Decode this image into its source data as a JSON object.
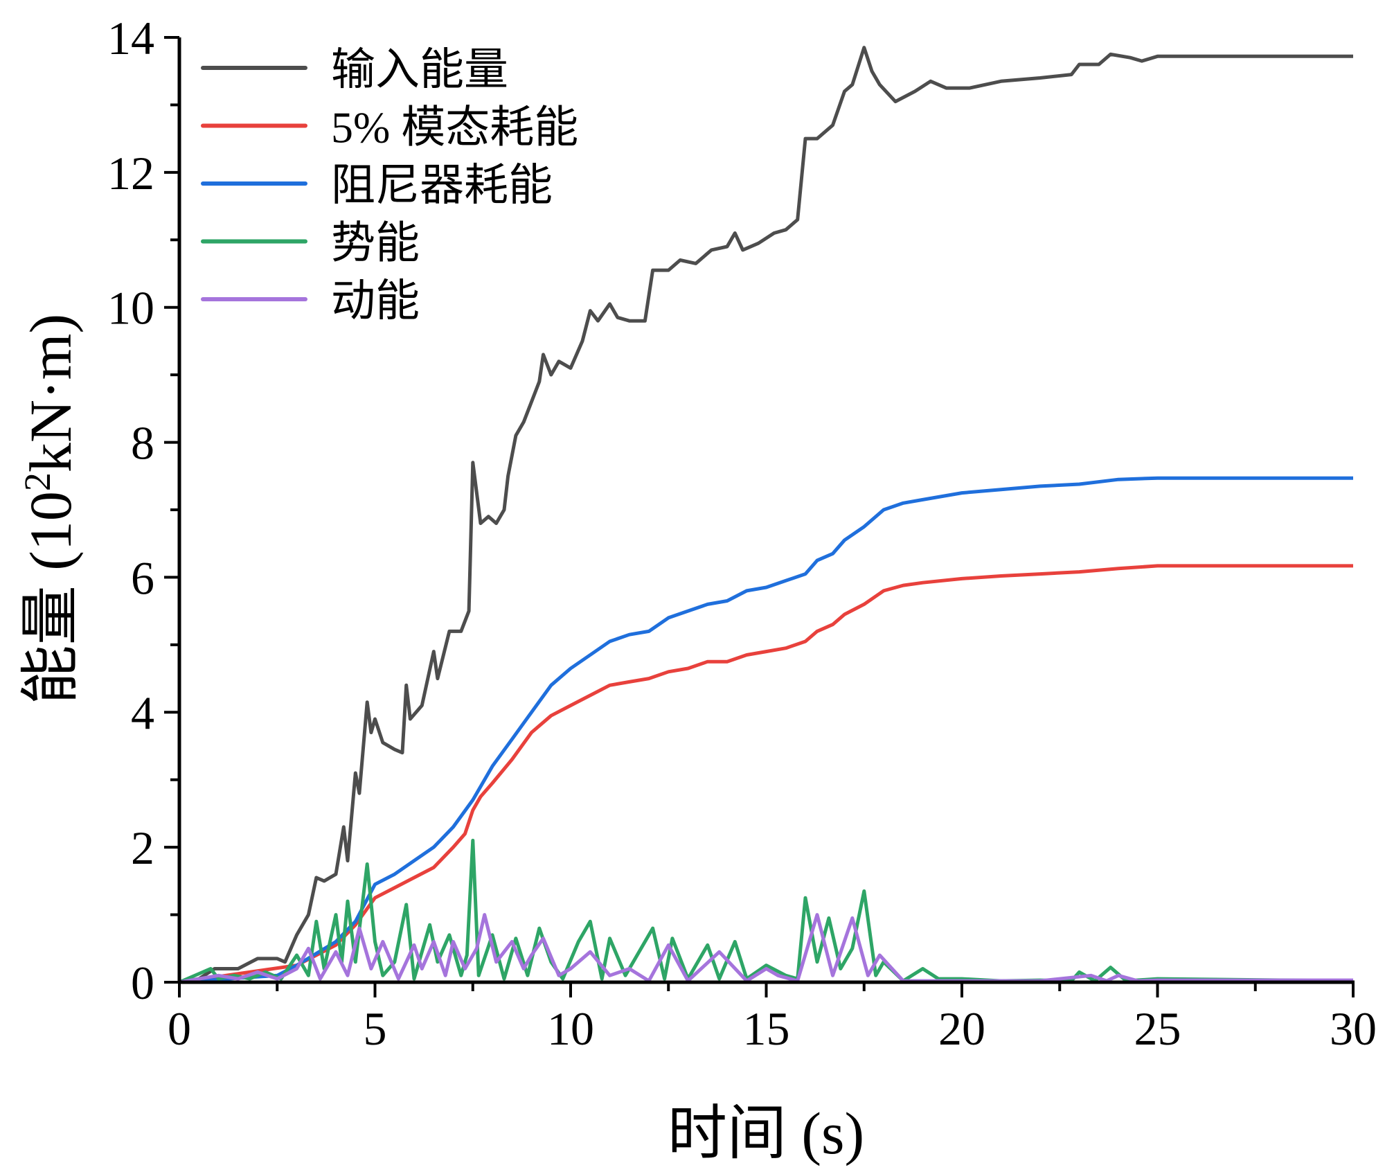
{
  "chart_data": {
    "type": "line",
    "title": "",
    "xlabel": "时间 (s)",
    "ylabel_main": "能量 (10",
    "ylabel_sup": "2",
    "ylabel_tail": "kN·m)",
    "xlim": [
      0,
      30
    ],
    "ylim": [
      0,
      14
    ],
    "x_ticks": [
      "0",
      "5",
      "10",
      "15",
      "20",
      "25",
      "30"
    ],
    "y_ticks": [
      "0",
      "2",
      "4",
      "6",
      "8",
      "10",
      "12",
      "14"
    ],
    "grid": false,
    "legend_position": "top-left",
    "series": [
      {
        "name": "输入能量",
        "color": "#4d4d4d",
        "x": [
          0,
          0.5,
          0.9,
          1.5,
          2,
          2.5,
          2.7,
          3,
          3.3,
          3.5,
          3.7,
          4,
          4.2,
          4.3,
          4.5,
          4.6,
          4.8,
          4.9,
          5.0,
          5.2,
          5.5,
          5.7,
          5.8,
          5.9,
          6.2,
          6.5,
          6.6,
          6.9,
          7.2,
          7.4,
          7.5,
          7.7,
          7.9,
          8.1,
          8.3,
          8.4,
          8.6,
          8.8,
          9.0,
          9.2,
          9.3,
          9.5,
          9.7,
          10.0,
          10.3,
          10.5,
          10.7,
          11.0,
          11.2,
          11.5,
          11.9,
          12.1,
          12.5,
          12.8,
          13.2,
          13.6,
          14.0,
          14.2,
          14.4,
          14.8,
          15.2,
          15.5,
          15.8,
          16.0,
          16.3,
          16.7,
          17.0,
          17.2,
          17.5,
          17.7,
          17.9,
          18.3,
          18.8,
          19.2,
          19.6,
          20.2,
          21,
          22,
          22.8,
          23.0,
          23.5,
          23.8,
          24.3,
          24.6,
          25,
          30
        ],
        "y": [
          0,
          0.05,
          0.2,
          0.2,
          0.35,
          0.35,
          0.3,
          0.7,
          1.0,
          1.55,
          1.5,
          1.6,
          2.3,
          1.8,
          3.1,
          2.8,
          4.15,
          3.7,
          3.9,
          3.55,
          3.45,
          3.4,
          4.4,
          3.9,
          4.1,
          4.9,
          4.5,
          5.2,
          5.2,
          5.5,
          7.7,
          6.8,
          6.9,
          6.8,
          7.0,
          7.5,
          8.1,
          8.3,
          8.6,
          8.9,
          9.3,
          9.0,
          9.2,
          9.1,
          9.5,
          9.95,
          9.8,
          10.05,
          9.85,
          9.8,
          9.8,
          10.55,
          10.55,
          10.7,
          10.65,
          10.85,
          10.9,
          11.1,
          10.85,
          10.95,
          11.1,
          11.15,
          11.3,
          12.5,
          12.5,
          12.7,
          13.2,
          13.3,
          13.85,
          13.5,
          13.3,
          13.05,
          13.2,
          13.35,
          13.25,
          13.25,
          13.35,
          13.4,
          13.45,
          13.6,
          13.6,
          13.75,
          13.7,
          13.65,
          13.72,
          13.72
        ]
      },
      {
        "name": "5% 模态耗能",
        "color": "#e8413c",
        "x": [
          0,
          3,
          4,
          4.5,
          5,
          5.5,
          6,
          6.5,
          7,
          7.3,
          7.5,
          7.7,
          8,
          8.5,
          9,
          9.5,
          10,
          10.5,
          11,
          11.5,
          12,
          12.5,
          13,
          13.5,
          14,
          14.5,
          15,
          15.5,
          16,
          16.3,
          16.7,
          17,
          17.5,
          18,
          18.5,
          19,
          20,
          21,
          22,
          23,
          24,
          25,
          30
        ],
        "y": [
          0,
          0.25,
          0.55,
          0.85,
          1.25,
          1.4,
          1.55,
          1.7,
          2.0,
          2.2,
          2.55,
          2.75,
          2.95,
          3.3,
          3.7,
          3.95,
          4.1,
          4.25,
          4.4,
          4.45,
          4.5,
          4.6,
          4.65,
          4.75,
          4.75,
          4.85,
          4.9,
          4.95,
          5.05,
          5.2,
          5.3,
          5.45,
          5.6,
          5.8,
          5.88,
          5.92,
          5.98,
          6.02,
          6.05,
          6.08,
          6.13,
          6.17,
          6.17
        ]
      },
      {
        "name": "阻尼器耗能",
        "color": "#1f6fdc",
        "x": [
          0,
          2.5,
          3,
          4,
          4.5,
          5,
          5.5,
          6,
          6.5,
          7,
          7.5,
          8,
          8.5,
          9,
          9.5,
          10,
          10.5,
          11,
          11.5,
          12,
          12.5,
          13,
          13.5,
          14,
          14.5,
          15,
          15.5,
          16,
          16.3,
          16.7,
          17,
          17.5,
          18,
          18.5,
          19,
          20,
          21,
          22,
          23,
          24,
          25,
          30
        ],
        "y": [
          0,
          0.1,
          0.25,
          0.6,
          0.9,
          1.45,
          1.6,
          1.8,
          2.0,
          2.3,
          2.7,
          3.2,
          3.6,
          4.0,
          4.4,
          4.65,
          4.85,
          5.05,
          5.15,
          5.2,
          5.4,
          5.5,
          5.6,
          5.65,
          5.8,
          5.85,
          5.95,
          6.05,
          6.25,
          6.35,
          6.55,
          6.75,
          7.0,
          7.1,
          7.15,
          7.25,
          7.3,
          7.35,
          7.38,
          7.45,
          7.47,
          7.47
        ]
      },
      {
        "name": "势能",
        "color": "#2ea566",
        "x": [
          0,
          0.8,
          1.0,
          1.4,
          1.8,
          2.2,
          2.6,
          3.0,
          3.3,
          3.5,
          3.7,
          4.0,
          4.15,
          4.3,
          4.5,
          4.8,
          5.0,
          5.2,
          5.5,
          5.8,
          6.0,
          6.4,
          6.6,
          6.9,
          7.2,
          7.35,
          7.5,
          7.65,
          8.0,
          8.3,
          8.6,
          8.9,
          9.2,
          9.5,
          9.8,
          10.2,
          10.5,
          10.8,
          11.0,
          11.4,
          12.1,
          12.4,
          12.6,
          13.0,
          13.5,
          13.8,
          14.2,
          14.5,
          15.0,
          15.5,
          15.8,
          16.0,
          16.3,
          16.6,
          16.9,
          17.2,
          17.5,
          17.8,
          18.0,
          18.5,
          19.0,
          19.4,
          20,
          21,
          22,
          22.8,
          23,
          23.4,
          23.8,
          24.2,
          25,
          30
        ],
        "y": [
          0,
          0.2,
          0.05,
          0.1,
          0.05,
          0.15,
          0.05,
          0.4,
          0.1,
          0.9,
          0.2,
          1.0,
          0.3,
          1.2,
          0.3,
          1.75,
          0.6,
          0.1,
          0.3,
          1.15,
          0.05,
          0.85,
          0.3,
          0.7,
          0.1,
          0.4,
          2.1,
          0.1,
          0.7,
          0.05,
          0.65,
          0.1,
          0.8,
          0.3,
          0.05,
          0.6,
          0.9,
          0.05,
          0.65,
          0.1,
          0.8,
          0.05,
          0.65,
          0.05,
          0.55,
          0.05,
          0.6,
          0.05,
          0.25,
          0.1,
          0.05,
          1.25,
          0.3,
          0.95,
          0.2,
          0.5,
          1.35,
          0.1,
          0.3,
          0.02,
          0.2,
          0.05,
          0.05,
          0.02,
          0.03,
          0.02,
          0.15,
          0.02,
          0.22,
          0.02,
          0.05,
          0.02
        ]
      },
      {
        "name": "动能",
        "color": "#a574dc",
        "x": [
          0,
          1.0,
          1.5,
          2.0,
          2.5,
          3.0,
          3.3,
          3.6,
          4.0,
          4.3,
          4.6,
          4.9,
          5.2,
          5.6,
          6.0,
          6.2,
          6.5,
          6.8,
          7.0,
          7.3,
          7.6,
          7.8,
          8.1,
          8.5,
          8.8,
          9.0,
          9.3,
          9.7,
          10.0,
          10.5,
          11.0,
          11.5,
          12.0,
          12.5,
          13.0,
          13.8,
          14.5,
          15.0,
          15.3,
          15.8,
          16.3,
          16.7,
          17.2,
          17.6,
          17.9,
          18.5,
          22,
          23.3,
          23.7,
          24.0,
          24.5,
          25,
          30
        ],
        "y": [
          0,
          0.1,
          0.05,
          0.15,
          0.05,
          0.2,
          0.5,
          0.05,
          0.45,
          0.1,
          0.8,
          0.2,
          0.6,
          0.05,
          0.55,
          0.2,
          0.6,
          0.1,
          0.6,
          0.2,
          0.5,
          1.0,
          0.3,
          0.6,
          0.2,
          0.4,
          0.65,
          0.1,
          0.2,
          0.45,
          0.1,
          0.2,
          0.02,
          0.55,
          0.02,
          0.45,
          0.02,
          0.2,
          0.1,
          0.02,
          1.0,
          0.1,
          0.95,
          0.1,
          0.4,
          0.02,
          0.02,
          0.1,
          0.02,
          0.1,
          0.02,
          0.03,
          0.03
        ]
      }
    ]
  }
}
